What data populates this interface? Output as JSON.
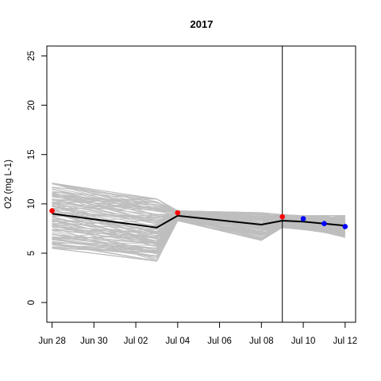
{
  "chart_data": {
    "type": "line",
    "title": "2017",
    "xlabel": "",
    "ylabel": "O2 (mg L-1)",
    "x_type": "date",
    "xlim": [
      "2017-06-27T18:00",
      "2017-07-12T12:00"
    ],
    "ylim": [
      -2,
      26
    ],
    "x_ticks": [
      {
        "date": "2017-06-28",
        "label": "Jun 28"
      },
      {
        "date": "2017-06-30",
        "label": "Jun 30"
      },
      {
        "date": "2017-07-02",
        "label": "Jul 02"
      },
      {
        "date": "2017-07-04",
        "label": "Jul 04"
      },
      {
        "date": "2017-07-06",
        "label": "Jul 06"
      },
      {
        "date": "2017-07-08",
        "label": "Jul 08"
      },
      {
        "date": "2017-07-10",
        "label": "Jul 10"
      },
      {
        "date": "2017-07-12",
        "label": "Jul 12"
      }
    ],
    "y_ticks": [
      0,
      5,
      10,
      15,
      20,
      25
    ],
    "grid": false,
    "legend": "none",
    "ensemble": {
      "color": "#bebebe",
      "dates": [
        "2017-06-28",
        "2017-07-03",
        "2017-07-04",
        "2017-07-08",
        "2017-07-09",
        "2017-07-10",
        "2017-07-11",
        "2017-07-12"
      ],
      "range_min": [
        5.5,
        4.2,
        8.3,
        6.3,
        7.6,
        7.4,
        7.1,
        6.6
      ],
      "range_max": [
        12.1,
        10.5,
        9.3,
        9.1,
        8.9,
        8.8,
        8.8,
        8.8
      ]
    },
    "series": [
      {
        "color": "#000000",
        "x": [
          "2017-06-28",
          "2017-07-03",
          "2017-07-04",
          "2017-07-08",
          "2017-07-09",
          "2017-07-10",
          "2017-07-11",
          "2017-07-12"
        ],
        "y": [
          9.0,
          7.6,
          8.8,
          7.9,
          8.3,
          8.2,
          8.0,
          7.8
        ]
      }
    ],
    "points": [
      {
        "x": "2017-06-28",
        "y": 9.3,
        "color": "#ff0000"
      },
      {
        "x": "2017-07-04",
        "y": 9.1,
        "color": "#ff0000"
      },
      {
        "x": "2017-07-09",
        "y": 8.7,
        "color": "#ff0000"
      },
      {
        "x": "2017-07-10",
        "y": 8.5,
        "color": "#0000ff"
      },
      {
        "x": "2017-07-11",
        "y": 8.0,
        "color": "#0000ff"
      },
      {
        "x": "2017-07-12",
        "y": 7.7,
        "color": "#0000ff"
      }
    ],
    "vline": {
      "x": "2017-07-09",
      "color": "#000000"
    }
  }
}
